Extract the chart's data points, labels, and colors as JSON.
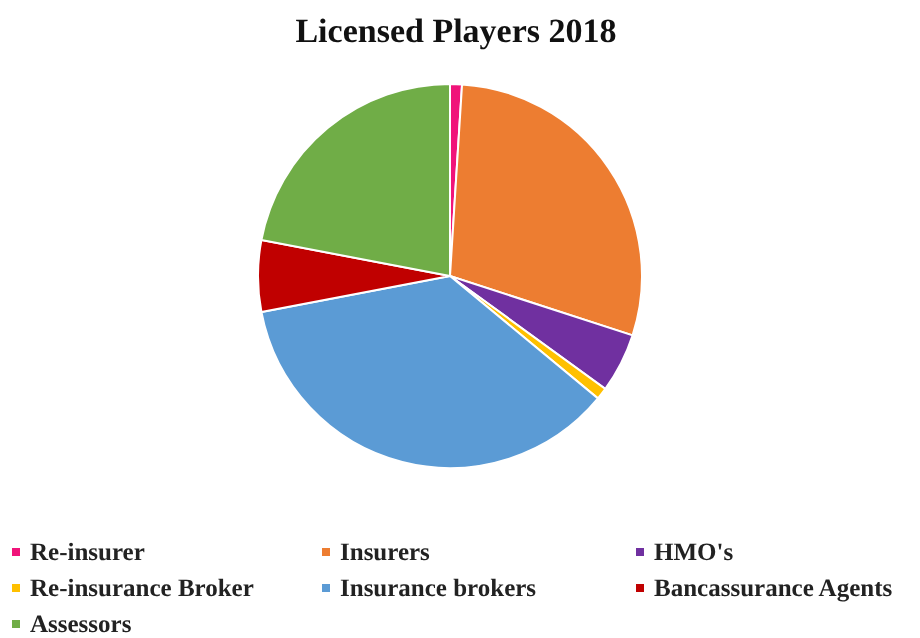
{
  "chart_data": {
    "type": "pie",
    "title": "Licensed Players 2018",
    "categories": [
      "Re-insurer",
      "Insurers",
      "HMO's",
      "Re-insurance Broker",
      "Insurance brokers",
      "Bancassurance Agents",
      "Assessors"
    ],
    "values": [
      1,
      29,
      5,
      1,
      36,
      6,
      22
    ],
    "colors": [
      "#f0147a",
      "#ed7d31",
      "#7030a0",
      "#ffc000",
      "#5b9bd5",
      "#c00000",
      "#70ad47"
    ],
    "legend": "bottom"
  }
}
